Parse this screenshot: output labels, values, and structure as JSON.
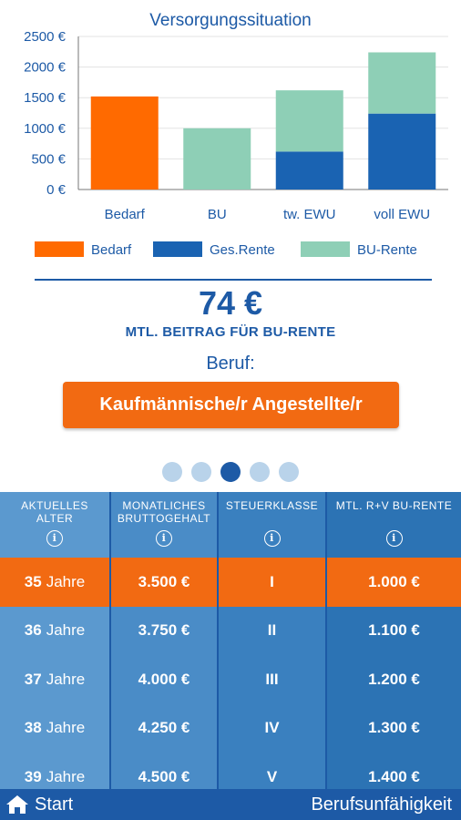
{
  "chart_data": {
    "type": "bar",
    "title": "Versorgungssituation",
    "categories": [
      "Bedarf",
      "BU",
      "tw. EWU",
      "voll EWU"
    ],
    "series": [
      {
        "name": "Bedarf",
        "color": "#ff6a00",
        "values": [
          1520,
          0,
          0,
          0
        ]
      },
      {
        "name": "Ges.Rente",
        "color": "#1a63b2",
        "values": [
          0,
          0,
          620,
          1240
        ]
      },
      {
        "name": "BU-Rente",
        "color": "#8ecfb6",
        "values": [
          0,
          1000,
          1000,
          1000
        ]
      }
    ],
    "stacked": true,
    "ylim": [
      0,
      2500
    ],
    "yticks": [
      "0 €",
      "500 €",
      "1000 €",
      "1500 €",
      "2000 €",
      "2500 €"
    ],
    "ytick_values": [
      0,
      500,
      1000,
      1500,
      2000,
      2500
    ],
    "grid": true,
    "legend": "bottom"
  },
  "price": {
    "value": "74 €",
    "label": "MTL. BEITRAG FÜR BU-RENTE"
  },
  "beruf": {
    "label": "Beruf:",
    "button": "Kaufmännische/r Angestellte/r"
  },
  "pager": {
    "count": 5,
    "active": 2
  },
  "table": {
    "headers": [
      {
        "line1": "AKTUELLES",
        "line2": "ALTER"
      },
      {
        "line1": "MONATLICHES",
        "line2": "BRUTTOGEHALT"
      },
      {
        "line1": "STEUERKLASSE",
        "line2": ""
      },
      {
        "line1": "MTL. R+V BU-RENTE",
        "line2": ""
      }
    ],
    "info_glyph": "i",
    "rows": [
      {
        "age": "35",
        "age_unit": "Jahre",
        "salary": "3.500 €",
        "class": "I",
        "rente": "1.000 €",
        "highlight": true
      },
      {
        "age": "36",
        "age_unit": "Jahre",
        "salary": "3.750 €",
        "class": "II",
        "rente": "1.100 €"
      },
      {
        "age": "37",
        "age_unit": "Jahre",
        "salary": "4.000 €",
        "class": "III",
        "rente": "1.200 €"
      },
      {
        "age": "38",
        "age_unit": "Jahre",
        "salary": "4.250 €",
        "class": "IV",
        "rente": "1.300 €"
      },
      {
        "age": "39",
        "age_unit": "Jahre",
        "salary": "4.500 €",
        "class": "V",
        "rente": "1.400 €"
      }
    ]
  },
  "nav": {
    "start": "Start",
    "title": "Berufsunfähigkeit",
    "home_icon": "home-icon"
  },
  "colors": {
    "primary": "#1d5aa6",
    "accent": "#f26a12"
  }
}
